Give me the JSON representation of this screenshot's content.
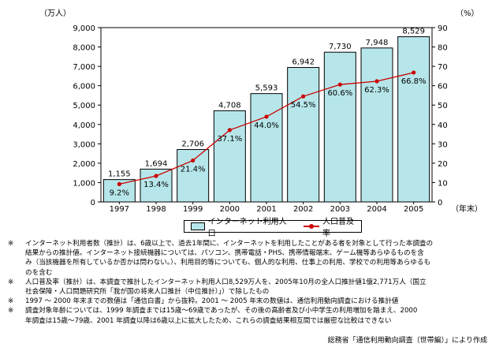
{
  "chart_data": {
    "type": "bar",
    "categories": [
      "1997",
      "1998",
      "1999",
      "2000",
      "2001",
      "2002",
      "2003",
      "2004",
      "2005"
    ],
    "series": [
      {
        "name": "インターネット利用人口",
        "kind": "bar",
        "axis": "left",
        "values": [
          1155,
          1694,
          2706,
          4708,
          5593,
          6942,
          7730,
          7948,
          8529
        ],
        "labels": [
          "1,155",
          "1,694",
          "2,706",
          "4,708",
          "5,593",
          "6,942",
          "7,730",
          "7,948",
          "8,529"
        ],
        "color": "#b6e6ea"
      },
      {
        "name": "人口普及率",
        "kind": "line",
        "axis": "right",
        "values": [
          9.2,
          13.4,
          21.4,
          37.1,
          44.0,
          54.5,
          60.6,
          62.3,
          66.8
        ],
        "labels": [
          "9.2%",
          "13.4%",
          "21.4%",
          "37.1%",
          "44.0%",
          "54.5%",
          "60.6%",
          "62.3%",
          "66.8%"
        ],
        "color": "#cc0000"
      }
    ],
    "left_axis": {
      "unit": "（万人）",
      "ylim": [
        0,
        9000
      ],
      "ticks": [
        "0",
        "1,000",
        "2,000",
        "3,000",
        "4,000",
        "5,000",
        "6,000",
        "7,000",
        "8,000",
        "9,000"
      ]
    },
    "right_axis": {
      "unit": "（%）",
      "ylim": [
        0,
        90
      ],
      "ticks": [
        "0",
        "10",
        "20",
        "30",
        "40",
        "50",
        "60",
        "70",
        "80",
        "90"
      ]
    },
    "xlabel": "（年末）",
    "grid": false,
    "legend_position": "bottom"
  },
  "legend": {
    "bar_label": "インターネット利用人口",
    "line_label": "人口普及率"
  },
  "notes": [
    {
      "mark": "※",
      "text": "インターネット利用者数（推計）は、6歳以上で、過去1年間に、インターネットを利用したことがある者を対象として行った本調査の\n結果からの推計値。インターネット接続機器については、パソコン、携帯電話・PHS、携帯情報端末、ゲーム機等あらゆるものを含\nみ（当該機器を所有しているか否かは問わない。）、利用目的等についても、個人的な利用、仕事上の利用、学校での利用等あらゆるも\nのを含む"
    },
    {
      "mark": "※",
      "text": "人口普及率（推計）は、本調査で推計したインターネット利用人口8,529万人を、2005年10月の全人口推計値1億2,771万人（国立\n社会保障・人口問題研究所「我が国の将来人口推計（中位推計）」）で除したもの"
    },
    {
      "mark": "※",
      "text": "1997 ～ 2000 年末までの数値は「通信白書」から抜粋。2001 ～ 2005 年末の数値は、通信利用動向調査における推計値"
    },
    {
      "mark": "※",
      "text": "調査対象年齢については、1999 年調査までは15歳～69歳であったが、その後の高齢者及び小中学生の利用増加を踏まえ、2000\n年調査は15歳～79歳、2001 年調査以降は6歳以上に拡大したため、これらの調査結果相互間では厳密な比較はできない"
    }
  ],
  "source": "総務省「通信利用動向調査（世帯編）」により作成"
}
